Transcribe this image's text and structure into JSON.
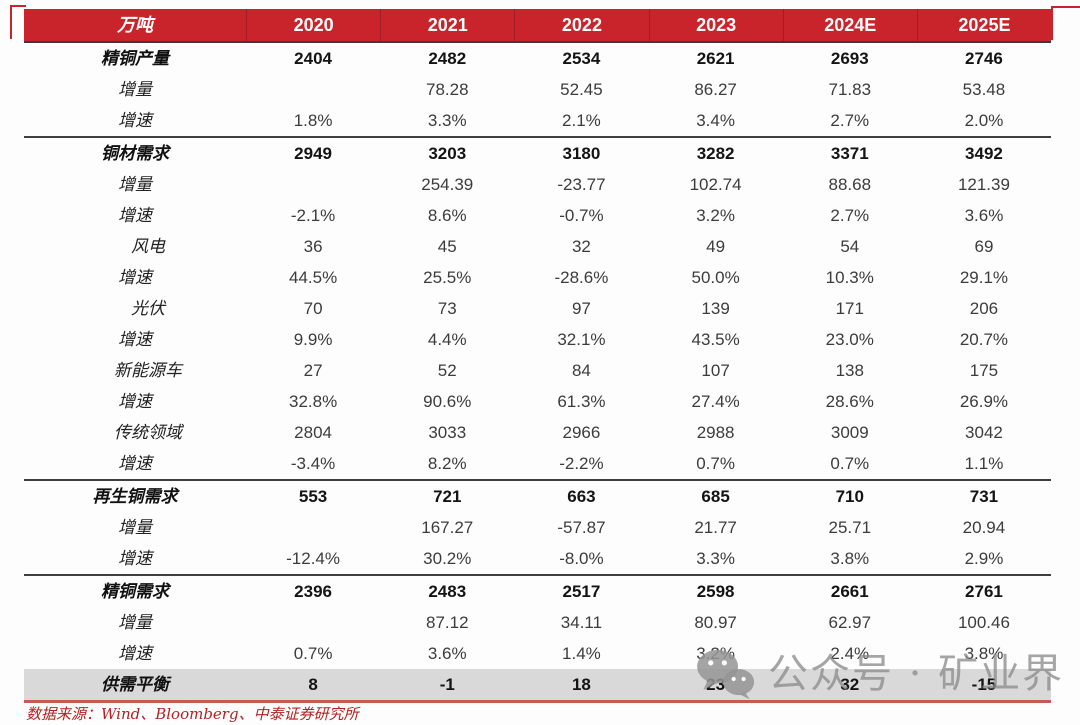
{
  "chart_data": {
    "type": "table",
    "unit_header": "万吨",
    "columns": [
      "2020",
      "2021",
      "2022",
      "2023",
      "2024E",
      "2025E"
    ],
    "rows": [
      {
        "label": "精铜产量",
        "bold": true,
        "indent": false,
        "values": [
          "2404",
          "2482",
          "2534",
          "2621",
          "2693",
          "2746"
        ]
      },
      {
        "label": "增量",
        "bold": false,
        "indent": false,
        "values": [
          "",
          "78.28",
          "52.45",
          "86.27",
          "71.83",
          "53.48"
        ]
      },
      {
        "label": "增速",
        "bold": false,
        "indent": false,
        "values": [
          "1.8%",
          "3.3%",
          "2.1%",
          "3.4%",
          "2.7%",
          "2.0%"
        ],
        "divider_after": true
      },
      {
        "label": "铜材需求",
        "bold": true,
        "indent": false,
        "values": [
          "2949",
          "3203",
          "3180",
          "3282",
          "3371",
          "3492"
        ]
      },
      {
        "label": "增量",
        "bold": false,
        "indent": false,
        "values": [
          "",
          "254.39",
          "-23.77",
          "102.74",
          "88.68",
          "121.39"
        ]
      },
      {
        "label": "增速",
        "bold": false,
        "indent": false,
        "values": [
          "-2.1%",
          "8.6%",
          "-0.7%",
          "3.2%",
          "2.7%",
          "3.6%"
        ]
      },
      {
        "label": "风电",
        "bold": false,
        "indent": true,
        "values": [
          "36",
          "45",
          "32",
          "49",
          "54",
          "69"
        ]
      },
      {
        "label": "增速",
        "bold": false,
        "indent": false,
        "values": [
          "44.5%",
          "25.5%",
          "-28.6%",
          "50.0%",
          "10.3%",
          "29.1%"
        ]
      },
      {
        "label": "光伏",
        "bold": false,
        "indent": true,
        "values": [
          "70",
          "73",
          "97",
          "139",
          "171",
          "206"
        ]
      },
      {
        "label": "增速",
        "bold": false,
        "indent": false,
        "values": [
          "9.9%",
          "4.4%",
          "32.1%",
          "43.5%",
          "23.0%",
          "20.7%"
        ]
      },
      {
        "label": "新能源车",
        "bold": false,
        "indent": true,
        "values": [
          "27",
          "52",
          "84",
          "107",
          "138",
          "175"
        ]
      },
      {
        "label": "增速",
        "bold": false,
        "indent": false,
        "values": [
          "32.8%",
          "90.6%",
          "61.3%",
          "27.4%",
          "28.6%",
          "26.9%"
        ]
      },
      {
        "label": "传统领域",
        "bold": false,
        "indent": true,
        "values": [
          "2804",
          "3033",
          "2966",
          "2988",
          "3009",
          "3042"
        ]
      },
      {
        "label": "增速",
        "bold": false,
        "indent": false,
        "values": [
          "-3.4%",
          "8.2%",
          "-2.2%",
          "0.7%",
          "0.7%",
          "1.1%"
        ],
        "divider_after": true
      },
      {
        "label": "再生铜需求",
        "bold": true,
        "indent": false,
        "values": [
          "553",
          "721",
          "663",
          "685",
          "710",
          "731"
        ]
      },
      {
        "label": "增量",
        "bold": false,
        "indent": false,
        "values": [
          "",
          "167.27",
          "-57.87",
          "21.77",
          "25.71",
          "20.94"
        ]
      },
      {
        "label": "增速",
        "bold": false,
        "indent": false,
        "values": [
          "-12.4%",
          "30.2%",
          "-8.0%",
          "3.3%",
          "3.8%",
          "2.9%"
        ],
        "divider_after": true
      },
      {
        "label": "精铜需求",
        "bold": true,
        "indent": false,
        "values": [
          "2396",
          "2483",
          "2517",
          "2598",
          "2661",
          "2761"
        ]
      },
      {
        "label": "增量",
        "bold": false,
        "indent": false,
        "values": [
          "",
          "87.12",
          "34.11",
          "80.97",
          "62.97",
          "100.46"
        ]
      },
      {
        "label": "增速",
        "bold": false,
        "indent": false,
        "values": [
          "0.7%",
          "3.6%",
          "1.4%",
          "3.2%",
          "2.4%",
          "3.8%"
        ]
      },
      {
        "label": "供需平衡",
        "bold": true,
        "indent": false,
        "highlight": true,
        "values": [
          "8",
          "-1",
          "18",
          "23",
          "32",
          "-15"
        ]
      }
    ]
  },
  "footer": {
    "source_text": "数据来源：Wind、Bloomberg、中泰证券研究所"
  },
  "watermark": {
    "icon": "wechat-icon",
    "text": "公众号 · 矿业界"
  },
  "colors": {
    "header_bg": "#c9242b",
    "header_text": "#ffffff",
    "highlight_row_bg": "#d9d9d9",
    "bottom_line": "#c75a55",
    "footer_text": "#b22222",
    "divider": "#3f3f3f",
    "watermark_gray": "#8c8c8c"
  }
}
